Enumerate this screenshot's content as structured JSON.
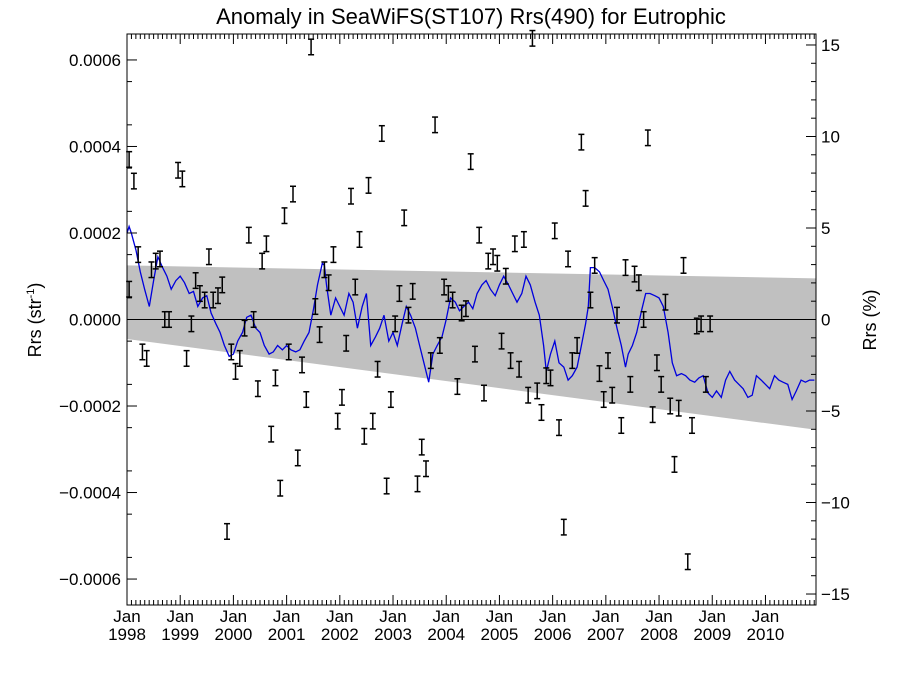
{
  "chart_data": {
    "type": "scatter",
    "title": "Anomaly in SeaWiFS(ST107) Rrs(490) for Eutrophic",
    "ylabel_left": {
      "main": "Rrs (str",
      "sup": "-1",
      "end": ")"
    },
    "ylabel_right": "Rrs (%)",
    "x_range": [
      1998.0,
      2010.95
    ],
    "y_range_left": [
      -0.00066,
      0.00066
    ],
    "y_range_right": [
      -15.6,
      15.6
    ],
    "x_ticks": [
      {
        "x": 1998,
        "month": "Jan",
        "year": "1998"
      },
      {
        "x": 1999,
        "month": "Jan",
        "year": "1999"
      },
      {
        "x": 2000,
        "month": "Jan",
        "year": "2000"
      },
      {
        "x": 2001,
        "month": "Jan",
        "year": "2001"
      },
      {
        "x": 2002,
        "month": "Jan",
        "year": "2002"
      },
      {
        "x": 2003,
        "month": "Jan",
        "year": "2003"
      },
      {
        "x": 2004,
        "month": "Jan",
        "year": "2004"
      },
      {
        "x": 2005,
        "month": "Jan",
        "year": "2005"
      },
      {
        "x": 2006,
        "month": "Jan",
        "year": "2006"
      },
      {
        "x": 2007,
        "month": "Jan",
        "year": "2007"
      },
      {
        "x": 2008,
        "month": "Jan",
        "year": "2008"
      },
      {
        "x": 2009,
        "month": "Jan",
        "year": "2009"
      },
      {
        "x": 2010,
        "month": "Jan",
        "year": "2010"
      }
    ],
    "y_ticks_left": [
      {
        "v": 0.0006,
        "label": "0.0006"
      },
      {
        "v": 0.0004,
        "label": "0.0004"
      },
      {
        "v": 0.0002,
        "label": "0.0002"
      },
      {
        "v": 0.0,
        "label": "0.0000"
      },
      {
        "v": -0.0002,
        "label": "−0.0002"
      },
      {
        "v": -0.0004,
        "label": "−0.0004"
      },
      {
        "v": -0.0006,
        "label": "−0.0006"
      }
    ],
    "y_ticks_right": [
      {
        "v": 15,
        "label": "15"
      },
      {
        "v": 10,
        "label": "10"
      },
      {
        "v": 5,
        "label": "5"
      },
      {
        "v": 0,
        "label": "0"
      },
      {
        "v": -5,
        "label": "−5"
      },
      {
        "v": -10,
        "label": "−10"
      },
      {
        "v": -15,
        "label": "−15"
      }
    ],
    "colors": {
      "points": "#000000",
      "trend_line": "#0000dd",
      "band": "#c0c0c0",
      "zero_line": "#000000"
    },
    "band": {
      "x": [
        1998.0,
        2010.95
      ],
      "upper": [
        0.000125,
        9.5e-05
      ],
      "lower": [
        -4.5e-05,
        -0.000255
      ]
    },
    "points": [
      {
        "x": 1998.04,
        "y": 0.00037
      },
      {
        "x": 1998.13,
        "y": 0.00032
      },
      {
        "x": 1998.21,
        "y": 0.00015
      },
      {
        "x": 1998.29,
        "y": -7.5e-05
      },
      {
        "x": 1998.37,
        "y": -9e-05
      },
      {
        "x": 1998.46,
        "y": 0.000115
      },
      {
        "x": 1998.54,
        "y": 0.000135
      },
      {
        "x": 1998.62,
        "y": 0.00014
      },
      {
        "x": 1998.71,
        "y": 0.0
      },
      {
        "x": 1998.79,
        "y": 0.0
      },
      {
        "x": 1998.04,
        "y": 7e-05
      },
      {
        "x": 1998.96,
        "y": 0.000345
      },
      {
        "x": 1999.04,
        "y": 0.000325
      },
      {
        "x": 1999.12,
        "y": -9e-05
      },
      {
        "x": 1999.21,
        "y": -1e-05
      },
      {
        "x": 1999.29,
        "y": 9e-05
      },
      {
        "x": 1999.37,
        "y": 6e-05
      },
      {
        "x": 1999.46,
        "y": 4.5e-05
      },
      {
        "x": 1999.54,
        "y": 0.000145
      },
      {
        "x": 1999.62,
        "y": 4.5e-05
      },
      {
        "x": 1999.71,
        "y": 5.5e-05
      },
      {
        "x": 1999.79,
        "y": 8e-05
      },
      {
        "x": 1999.88,
        "y": -0.00049
      },
      {
        "x": 1999.96,
        "y": -7.5e-05
      },
      {
        "x": 2000.04,
        "y": -0.00012
      },
      {
        "x": 2000.12,
        "y": -9e-05
      },
      {
        "x": 2000.21,
        "y": -2e-05
      },
      {
        "x": 2000.29,
        "y": 0.000195
      },
      {
        "x": 2000.38,
        "y": 0.0
      },
      {
        "x": 2000.46,
        "y": -0.00016
      },
      {
        "x": 2000.54,
        "y": 0.000135
      },
      {
        "x": 2000.62,
        "y": 0.000175
      },
      {
        "x": 2000.71,
        "y": -0.000265
      },
      {
        "x": 2000.79,
        "y": -0.000135
      },
      {
        "x": 2000.88,
        "y": -0.00039
      },
      {
        "x": 2000.96,
        "y": 0.00024
      },
      {
        "x": 2001.04,
        "y": -7.5e-05
      },
      {
        "x": 2001.12,
        "y": 0.00029
      },
      {
        "x": 2001.21,
        "y": -0.00032
      },
      {
        "x": 2001.29,
        "y": -0.000105
      },
      {
        "x": 2001.37,
        "y": -0.000185
      },
      {
        "x": 2001.46,
        "y": 0.00063
      },
      {
        "x": 2001.54,
        "y": 3e-05
      },
      {
        "x": 2001.62,
        "y": -3.5e-05
      },
      {
        "x": 2001.71,
        "y": 0.000115
      },
      {
        "x": 2001.79,
        "y": 8.5e-05
      },
      {
        "x": 2001.88,
        "y": 0.00015
      },
      {
        "x": 2001.96,
        "y": -0.000235
      },
      {
        "x": 2002.04,
        "y": -0.00018
      },
      {
        "x": 2002.12,
        "y": -5.5e-05
      },
      {
        "x": 2002.21,
        "y": 0.000285
      },
      {
        "x": 2002.29,
        "y": 7.5e-05
      },
      {
        "x": 2002.37,
        "y": 0.000185
      },
      {
        "x": 2002.46,
        "y": -0.00027
      },
      {
        "x": 2002.54,
        "y": 0.00031
      },
      {
        "x": 2002.62,
        "y": -0.000235
      },
      {
        "x": 2002.71,
        "y": -0.000115
      },
      {
        "x": 2002.79,
        "y": 0.00043
      },
      {
        "x": 2002.88,
        "y": -0.000385
      },
      {
        "x": 2002.96,
        "y": -0.000185
      },
      {
        "x": 2003.04,
        "y": -1e-05
      },
      {
        "x": 2003.12,
        "y": 6e-05
      },
      {
        "x": 2003.21,
        "y": 0.000235
      },
      {
        "x": 2003.29,
        "y": 1e-05
      },
      {
        "x": 2003.37,
        "y": 6.5e-05
      },
      {
        "x": 2003.46,
        "y": -0.00038
      },
      {
        "x": 2003.54,
        "y": -0.000295
      },
      {
        "x": 2003.62,
        "y": -0.000345
      },
      {
        "x": 2003.71,
        "y": -9.5e-05
      },
      {
        "x": 2003.79,
        "y": 0.00045
      },
      {
        "x": 2003.88,
        "y": -6e-05
      },
      {
        "x": 2003.96,
        "y": 7.5e-05
      },
      {
        "x": 2004.04,
        "y": 6e-05
      },
      {
        "x": 2004.12,
        "y": 4.5e-05
      },
      {
        "x": 2004.21,
        "y": -0.000155
      },
      {
        "x": 2004.29,
        "y": 1.5e-05
      },
      {
        "x": 2004.37,
        "y": 2.5e-05
      },
      {
        "x": 2004.46,
        "y": 0.000365
      },
      {
        "x": 2004.54,
        "y": -8e-05
      },
      {
        "x": 2004.62,
        "y": 0.000195
      },
      {
        "x": 2004.71,
        "y": -0.00017
      },
      {
        "x": 2004.79,
        "y": 0.000135
      },
      {
        "x": 2004.88,
        "y": 0.000145
      },
      {
        "x": 2004.96,
        "y": 0.00013
      },
      {
        "x": 2005.04,
        "y": -5e-05
      },
      {
        "x": 2005.12,
        "y": 0.0001
      },
      {
        "x": 2005.21,
        "y": -9.5e-05
      },
      {
        "x": 2005.29,
        "y": 0.000175
      },
      {
        "x": 2005.37,
        "y": -0.000115
      },
      {
        "x": 2005.46,
        "y": 0.000185
      },
      {
        "x": 2005.54,
        "y": -0.000175
      },
      {
        "x": 2005.62,
        "y": 0.00065
      },
      {
        "x": 2005.71,
        "y": -0.000165
      },
      {
        "x": 2005.79,
        "y": -0.000215
      },
      {
        "x": 2005.88,
        "y": -0.00013
      },
      {
        "x": 2005.96,
        "y": -0.000135
      },
      {
        "x": 2006.04,
        "y": 0.000205
      },
      {
        "x": 2006.12,
        "y": -0.00025
      },
      {
        "x": 2006.21,
        "y": -0.00048
      },
      {
        "x": 2006.29,
        "y": 0.00014
      },
      {
        "x": 2006.37,
        "y": -9.5e-05
      },
      {
        "x": 2006.46,
        "y": -6e-05
      },
      {
        "x": 2006.54,
        "y": 0.00041
      },
      {
        "x": 2006.62,
        "y": 0.00028
      },
      {
        "x": 2006.71,
        "y": 4.5e-05
      },
      {
        "x": 2006.79,
        "y": 0.000125
      },
      {
        "x": 2006.88,
        "y": -0.000125
      },
      {
        "x": 2006.96,
        "y": -0.000185
      },
      {
        "x": 2007.04,
        "y": -9.5e-05
      },
      {
        "x": 2007.12,
        "y": -0.000175
      },
      {
        "x": 2007.21,
        "y": 1e-05
      },
      {
        "x": 2007.29,
        "y": -0.000245
      },
      {
        "x": 2007.37,
        "y": 0.00012
      },
      {
        "x": 2007.46,
        "y": -0.00015
      },
      {
        "x": 2007.54,
        "y": 0.000105
      },
      {
        "x": 2007.62,
        "y": 8.5e-05
      },
      {
        "x": 2007.71,
        "y": 0.0
      },
      {
        "x": 2007.79,
        "y": 0.00042
      },
      {
        "x": 2007.88,
        "y": -0.00022
      },
      {
        "x": 2007.96,
        "y": -0.0001
      },
      {
        "x": 2008.04,
        "y": -0.00015
      },
      {
        "x": 2008.12,
        "y": 4e-05
      },
      {
        "x": 2008.21,
        "y": -0.0002
      },
      {
        "x": 2008.29,
        "y": -0.000335
      },
      {
        "x": 2008.37,
        "y": -0.000205
      },
      {
        "x": 2008.46,
        "y": 0.000125
      },
      {
        "x": 2008.54,
        "y": -0.00056
      },
      {
        "x": 2008.62,
        "y": -0.000245
      },
      {
        "x": 2008.71,
        "y": -1.5e-05
      },
      {
        "x": 2008.79,
        "y": -1e-05
      },
      {
        "x": 2008.88,
        "y": -0.00015
      },
      {
        "x": 2008.96,
        "y": -1e-05
      }
    ],
    "trend_line": [
      [
        1998.0,
        0.0002
      ],
      [
        1998.04,
        0.000215
      ],
      [
        1998.08,
        0.0002
      ],
      [
        1998.17,
        0.00016
      ],
      [
        1998.25,
        0.00011
      ],
      [
        1998.33,
        7e-05
      ],
      [
        1998.42,
        3e-05
      ],
      [
        1998.5,
        9e-05
      ],
      [
        1998.58,
        0.000145
      ],
      [
        1998.67,
        0.00012
      ],
      [
        1998.75,
        0.0001
      ],
      [
        1998.83,
        7e-05
      ],
      [
        1998.92,
        9e-05
      ],
      [
        1999.0,
        0.0001
      ],
      [
        1999.08,
        8.5e-05
      ],
      [
        1999.17,
        6e-05
      ],
      [
        1999.25,
        6.5e-05
      ],
      [
        1999.33,
        3e-05
      ],
      [
        1999.42,
        5e-05
      ],
      [
        1999.5,
        5.5e-05
      ],
      [
        1999.58,
        1.5e-05
      ],
      [
        1999.67,
        -1e-05
      ],
      [
        1999.75,
        -3e-05
      ],
      [
        1999.83,
        -6e-05
      ],
      [
        1999.92,
        -8.5e-05
      ],
      [
        2000.0,
        -8e-05
      ],
      [
        2000.08,
        -5e-05
      ],
      [
        2000.17,
        -3e-05
      ],
      [
        2000.25,
        5e-06
      ],
      [
        2000.33,
        1e-05
      ],
      [
        2000.42,
        -2e-05
      ],
      [
        2000.5,
        -3e-05
      ],
      [
        2000.58,
        -6e-05
      ],
      [
        2000.67,
        -8e-05
      ],
      [
        2000.75,
        -7.5e-05
      ],
      [
        2000.83,
        -6e-05
      ],
      [
        2000.92,
        -7e-05
      ],
      [
        2001.0,
        -6e-05
      ],
      [
        2001.08,
        -7e-05
      ],
      [
        2001.17,
        -7.5e-05
      ],
      [
        2001.25,
        -7e-05
      ],
      [
        2001.33,
        -5e-05
      ],
      [
        2001.42,
        -3e-05
      ],
      [
        2001.5,
        2e-05
      ],
      [
        2001.58,
        8e-05
      ],
      [
        2001.67,
        0.00013
      ],
      [
        2001.71,
        0.000125
      ],
      [
        2001.75,
        8e-05
      ],
      [
        2001.83,
        1e-05
      ],
      [
        2001.92,
        5e-05
      ],
      [
        2002.0,
        3e-05
      ],
      [
        2002.08,
        1e-05
      ],
      [
        2002.17,
        6e-05
      ],
      [
        2002.25,
        4e-05
      ],
      [
        2002.33,
        -2e-05
      ],
      [
        2002.42,
        3e-05
      ],
      [
        2002.5,
        6e-05
      ],
      [
        2002.58,
        -6e-05
      ],
      [
        2002.67,
        -4e-05
      ],
      [
        2002.75,
        -2e-05
      ],
      [
        2002.83,
        1e-05
      ],
      [
        2002.92,
        -5e-05
      ],
      [
        2003.0,
        -3e-05
      ],
      [
        2003.08,
        -6e-05
      ],
      [
        2003.17,
        -1e-05
      ],
      [
        2003.25,
        3e-05
      ],
      [
        2003.33,
        1e-05
      ],
      [
        2003.42,
        -2e-05
      ],
      [
        2003.5,
        -6e-05
      ],
      [
        2003.58,
        -0.0001
      ],
      [
        2003.67,
        -0.000145
      ],
      [
        2003.75,
        -8e-05
      ],
      [
        2003.83,
        -6e-05
      ],
      [
        2003.92,
        -4e-05
      ],
      [
        2004.0,
        0.0
      ],
      [
        2004.08,
        5e-05
      ],
      [
        2004.17,
        4e-05
      ],
      [
        2004.25,
        2e-05
      ],
      [
        2004.33,
        3e-05
      ],
      [
        2004.42,
        4e-05
      ],
      [
        2004.5,
        2.5e-05
      ],
      [
        2004.58,
        6e-05
      ],
      [
        2004.67,
        8e-05
      ],
      [
        2004.75,
        9e-05
      ],
      [
        2004.83,
        7e-05
      ],
      [
        2004.92,
        5.5e-05
      ],
      [
        2005.0,
        8e-05
      ],
      [
        2005.08,
        0.0001
      ],
      [
        2005.17,
        8e-05
      ],
      [
        2005.25,
        6e-05
      ],
      [
        2005.33,
        4e-05
      ],
      [
        2005.42,
        6e-05
      ],
      [
        2005.5,
        0.0001
      ],
      [
        2005.58,
        8e-05
      ],
      [
        2005.67,
        4e-05
      ],
      [
        2005.75,
        1e-05
      ],
      [
        2005.83,
        -6e-05
      ],
      [
        2005.88,
        -0.00012
      ],
      [
        2005.96,
        -8e-05
      ],
      [
        2006.04,
        -5e-05
      ],
      [
        2006.12,
        -0.0001
      ],
      [
        2006.21,
        -0.00011
      ],
      [
        2006.29,
        -0.00014
      ],
      [
        2006.37,
        -0.00013
      ],
      [
        2006.46,
        -0.00011
      ],
      [
        2006.54,
        -6e-05
      ],
      [
        2006.62,
        -1e-05
      ],
      [
        2006.67,
        3e-05
      ],
      [
        2006.71,
        0.00012
      ],
      [
        2006.79,
        0.00012
      ],
      [
        2006.88,
        0.00011
      ],
      [
        2006.96,
        9e-05
      ],
      [
        2007.04,
        7e-05
      ],
      [
        2007.12,
        3e-05
      ],
      [
        2007.21,
        -2e-05
      ],
      [
        2007.29,
        -6e-05
      ],
      [
        2007.37,
        -0.00011
      ],
      [
        2007.42,
        -8e-05
      ],
      [
        2007.5,
        -6e-05
      ],
      [
        2007.58,
        -3e-05
      ],
      [
        2007.67,
        2e-05
      ],
      [
        2007.75,
        6e-05
      ],
      [
        2007.83,
        6e-05
      ],
      [
        2007.92,
        5.5e-05
      ],
      [
        2008.0,
        5e-05
      ],
      [
        2008.08,
        3e-05
      ],
      [
        2008.17,
        -3e-05
      ],
      [
        2008.25,
        -0.0001
      ],
      [
        2008.33,
        -0.00013
      ],
      [
        2008.42,
        -0.000125
      ],
      [
        2008.5,
        -0.00013
      ],
      [
        2008.58,
        -0.00014
      ],
      [
        2008.67,
        -0.000145
      ],
      [
        2008.75,
        -0.000135
      ],
      [
        2008.83,
        -0.00013
      ],
      [
        2008.92,
        -0.00017
      ],
      [
        2009.0,
        -0.00018
      ],
      [
        2009.08,
        -0.000165
      ],
      [
        2009.17,
        -0.00018
      ],
      [
        2009.25,
        -0.00014
      ],
      [
        2009.33,
        -0.00012
      ],
      [
        2009.42,
        -0.00014
      ],
      [
        2009.5,
        -0.00015
      ],
      [
        2009.58,
        -0.00016
      ],
      [
        2009.67,
        -0.00018
      ],
      [
        2009.75,
        -0.000175
      ],
      [
        2009.83,
        -0.00013
      ],
      [
        2009.92,
        -0.00014
      ],
      [
        2010.0,
        -0.00015
      ],
      [
        2010.08,
        -0.00016
      ],
      [
        2010.17,
        -0.00013
      ],
      [
        2010.25,
        -0.00014
      ],
      [
        2010.33,
        -0.000145
      ],
      [
        2010.42,
        -0.00015
      ],
      [
        2010.5,
        -0.000185
      ],
      [
        2010.58,
        -0.000165
      ],
      [
        2010.67,
        -0.00014
      ],
      [
        2010.75,
        -0.000145
      ],
      [
        2010.83,
        -0.00014
      ],
      [
        2010.92,
        -0.00014
      ]
    ],
    "error_half_width": 1.8e-05
  }
}
